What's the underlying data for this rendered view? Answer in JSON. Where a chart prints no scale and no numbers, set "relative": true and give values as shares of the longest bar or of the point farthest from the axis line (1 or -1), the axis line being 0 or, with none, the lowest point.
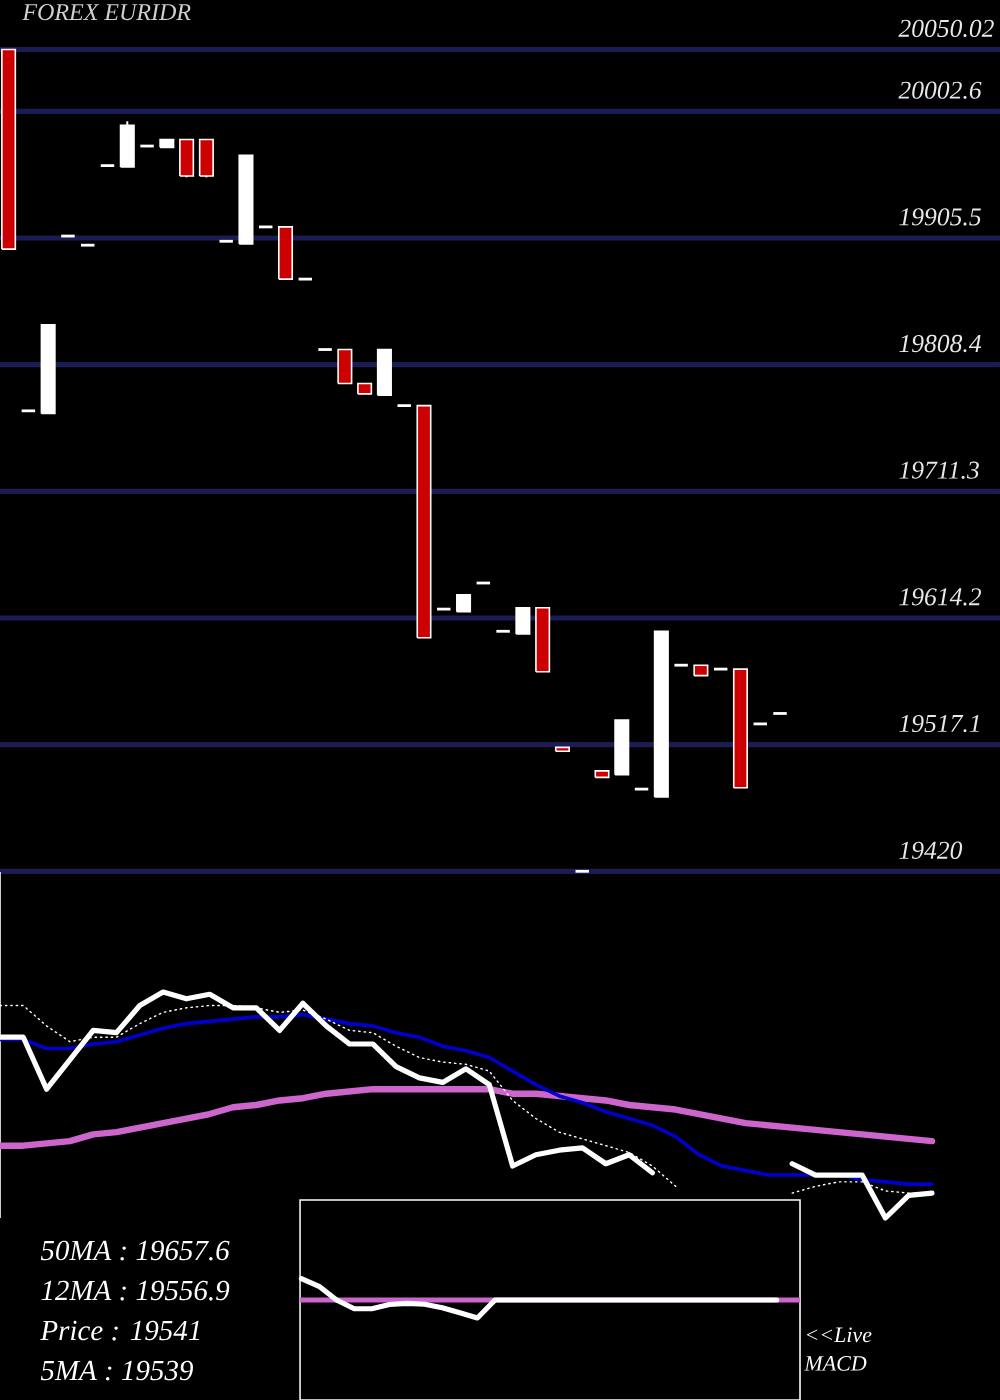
{
  "chart_data": [
    {
      "type": "candlestick",
      "title": "FOREX EURIDR",
      "categories": [
        null,
        null,
        null,
        null,
        null,
        null,
        null,
        null,
        null,
        null,
        null,
        null,
        null,
        null,
        null,
        null,
        null,
        null,
        null,
        null,
        null,
        null,
        null,
        null,
        null,
        null,
        null,
        null,
        null,
        null,
        null,
        null,
        null,
        null,
        null,
        null,
        null,
        null,
        null,
        null
      ],
      "ohlc": [
        [
          20050.02,
          20050.02,
          19897,
          19897
        ],
        [
          19773,
          19773,
          19773,
          19773
        ],
        [
          19771,
          19839,
          19771,
          19839
        ],
        [
          19907,
          19907,
          19907,
          19907
        ],
        [
          19900,
          19900,
          19900,
          19900
        ],
        [
          19961,
          19961,
          19961,
          19961
        ],
        [
          19960,
          19995,
          19960,
          19992
        ],
        [
          19976,
          19976,
          19976,
          19976
        ],
        [
          19975,
          19981,
          19975,
          19981
        ],
        [
          19981,
          19981,
          19952,
          19953
        ],
        [
          19981,
          19981,
          19952,
          19953
        ],
        [
          19903,
          19903,
          19903,
          19903
        ],
        [
          19901,
          19969,
          19901,
          19969
        ],
        [
          19914,
          19914,
          19914,
          19914
        ],
        [
          19914,
          19914,
          19874,
          19874
        ],
        [
          19874,
          19874,
          19874,
          19874
        ],
        [
          19820,
          19820,
          19820,
          19820
        ],
        [
          19820,
          19820,
          19794,
          19794
        ],
        [
          19794,
          19794,
          19786,
          19786
        ],
        [
          19785,
          19820,
          19785,
          19820
        ],
        [
          19777,
          19777,
          19777,
          19777
        ],
        [
          19777,
          19777,
          19599,
          19599
        ],
        [
          19621,
          19621,
          19621,
          19621
        ],
        [
          19619,
          19632,
          19619,
          19632
        ],
        [
          19641,
          19641,
          19641,
          19641
        ],
        [
          19604,
          19604,
          19604,
          19604
        ],
        [
          19602,
          19622,
          19602,
          19622
        ],
        [
          19622,
          19622,
          19573,
          19573
        ],
        [
          19515,
          19515,
          19512,
          19512
        ],
        [
          19420,
          19420,
          19420,
          19420
        ],
        [
          19497,
          19497,
          19492,
          19492
        ],
        [
          19494,
          19536,
          19494,
          19536
        ],
        [
          19483,
          19483,
          19483,
          19483
        ],
        [
          19477,
          19604,
          19477,
          19604
        ],
        [
          19578,
          19578,
          19578,
          19578
        ],
        [
          19578,
          19578,
          19570,
          19570
        ],
        [
          19575,
          19575,
          19575,
          19575
        ],
        [
          19575,
          19575,
          19484,
          19484
        ],
        [
          19533,
          19533,
          19533,
          19533
        ],
        [
          19541,
          19541,
          19541,
          19541
        ]
      ],
      "colors": [
        "#cc0000",
        "#ffffff",
        "#ffffff",
        "#ffffff",
        "#ffffff",
        "#ffffff",
        "#ffffff",
        "#ffffff",
        "#ffffff",
        "#cc0000",
        "#cc0000",
        "#ffffff",
        "#ffffff",
        "#ffffff",
        "#cc0000",
        "#ffffff",
        "#ffffff",
        "#cc0000",
        "#cc0000",
        "#ffffff",
        "#ffffff",
        "#cc0000",
        "#ffffff",
        "#ffffff",
        "#ffffff",
        "#ffffff",
        "#ffffff",
        "#cc0000",
        "#cc0000",
        "#ffffff",
        "#cc0000",
        "#ffffff",
        "#ffffff",
        "#ffffff",
        "#ffffff",
        "#cc0000",
        "#ffffff",
        "#cc0000",
        "#ffffff",
        "#ffffff"
      ],
      "ylim": [
        19420,
        20050.02
      ],
      "yticks": [
        19420,
        19517.1,
        19614.2,
        19711.3,
        19808.4,
        19905.5,
        20002.6,
        20050.02
      ],
      "grid": "y"
    },
    {
      "type": "line",
      "relative": true,
      "categories": [
        null,
        null,
        null,
        null,
        null,
        null,
        null,
        null,
        null,
        null,
        null,
        null,
        null,
        null,
        null,
        null,
        null,
        null,
        null,
        null,
        null,
        null,
        null,
        null,
        null,
        null,
        null,
        null,
        null,
        null,
        null,
        null,
        null,
        null,
        null,
        null,
        null,
        null,
        null,
        null,
        null
      ],
      "series": [
        {
          "color": "#cc66cc",
          "values": [
            0.32,
            0.32,
            0.33,
            0.34,
            0.37,
            0.38,
            0.4,
            0.42,
            0.44,
            0.46,
            0.49,
            0.5,
            0.52,
            0.53,
            0.55,
            0.56,
            0.57,
            0.57,
            0.57,
            0.57,
            0.57,
            0.57,
            0.55,
            0.55,
            0.54,
            0.53,
            0.52,
            0.5,
            0.49,
            0.48,
            0.46,
            0.44,
            0.42,
            0.41,
            0.4,
            0.39,
            0.38,
            0.37,
            0.36,
            0.35,
            0.34
          ]
        },
        {
          "color": "#0000cc",
          "values": [
            0.79,
            0.79,
            0.75,
            0.75,
            0.77,
            0.78,
            0.81,
            0.84,
            0.86,
            0.87,
            0.88,
            0.89,
            0.89,
            0.9,
            0.88,
            0.86,
            0.85,
            0.82,
            0.8,
            0.76,
            0.74,
            0.71,
            0.65,
            0.59,
            0.54,
            0.51,
            0.47,
            0.44,
            0.41,
            0.36,
            0.28,
            0.23,
            0.21,
            0.19,
            0.19,
            0.19,
            0.19,
            0.17,
            0.16,
            0.15,
            0.15
          ]
        },
        {
          "color": "#ffffff",
          "line_style": "dotted",
          "values": [
            0.94,
            0.94,
            0.85,
            0.78,
            0.8,
            0.8,
            0.86,
            0.91,
            0.93,
            0.94,
            0.94,
            0.93,
            0.91,
            0.92,
            0.88,
            0.83,
            0.82,
            0.76,
            0.71,
            0.69,
            0.68,
            0.65,
            0.52,
            0.44,
            0.38,
            0.35,
            0.32,
            0.29,
            0.23,
            0.14,
            null,
            null,
            null,
            null,
            0.11,
            0.14,
            0.16,
            0.16,
            0.12,
            0.11,
            0.11
          ]
        },
        {
          "color": "#ffffff",
          "values": [
            0.8,
            0.8,
            0.57,
            0.7,
            0.83,
            0.82,
            0.94,
            1.0,
            0.97,
            0.99,
            0.93,
            0.93,
            0.83,
            0.95,
            0.85,
            0.77,
            0.77,
            0.67,
            0.62,
            0.6,
            0.66,
            0.59,
            0.23,
            0.28,
            0.3,
            0.31,
            0.24,
            0.28,
            0.2,
            null,
            null,
            null,
            null,
            null,
            0.24,
            0.19,
            0.19,
            0.19,
            0,
            0.1,
            0.11
          ]
        }
      ],
      "annotations": [
        "50MA : 19657.6",
        "12MA : 19556.9",
        "Price : 19541",
        "5MA : 19539"
      ]
    },
    {
      "type": "line",
      "relative": true,
      "categories": [
        null,
        null,
        null,
        null,
        null,
        null,
        null,
        null,
        null,
        null,
        null,
        null,
        null,
        null,
        null,
        null,
        null,
        null,
        null,
        null,
        null,
        null,
        null,
        null,
        null,
        null,
        null,
        null
      ],
      "series": [
        {
          "color": "#ffffff",
          "values": [
            1,
            0.64,
            0,
            -0.41,
            -0.41,
            -0.21,
            -0.16,
            -0.2,
            -0.36,
            -0.6,
            -0.84,
            0,
            0,
            0,
            0,
            0,
            0,
            0,
            0,
            0,
            0,
            0,
            0,
            0,
            0,
            0,
            0,
            0
          ]
        }
      ],
      "ref_lines": [
        {
          "axis": "y",
          "value": 0,
          "color": "#cc66cc"
        }
      ],
      "annotations": [
        "<<Live MACD"
      ]
    }
  ]
}
